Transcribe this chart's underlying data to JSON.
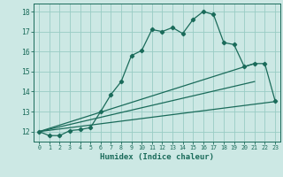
{
  "title": "",
  "xlabel": "Humidex (Indice chaleur)",
  "bg_color": "#cce8e4",
  "grid_color": "#99ccc4",
  "line_color": "#1a6b5a",
  "xlim": [
    -0.5,
    23.5
  ],
  "ylim": [
    11.5,
    18.4
  ],
  "xticks": [
    0,
    1,
    2,
    3,
    4,
    5,
    6,
    7,
    8,
    9,
    10,
    11,
    12,
    13,
    14,
    15,
    16,
    17,
    18,
    19,
    20,
    21,
    22,
    23
  ],
  "yticks": [
    12,
    13,
    14,
    15,
    16,
    17,
    18
  ],
  "curve_x": [
    0,
    1,
    2,
    3,
    4,
    5,
    6,
    7,
    8,
    9,
    10,
    11,
    12,
    13,
    14,
    15,
    16,
    17,
    18,
    19,
    20,
    21,
    22,
    23
  ],
  "curve_y": [
    12.0,
    11.8,
    11.8,
    12.05,
    12.1,
    12.2,
    13.0,
    13.85,
    14.5,
    15.8,
    16.05,
    17.1,
    17.0,
    17.2,
    16.9,
    17.6,
    18.0,
    17.85,
    16.45,
    16.35,
    15.25,
    15.4,
    15.4,
    13.55
  ],
  "line2_x": [
    0,
    21
  ],
  "line2_y": [
    12.0,
    15.4
  ],
  "line3_x": [
    0,
    21
  ],
  "line3_y": [
    12.0,
    14.5
  ],
  "line4_x": [
    0,
    23
  ],
  "line4_y": [
    12.0,
    13.5
  ]
}
